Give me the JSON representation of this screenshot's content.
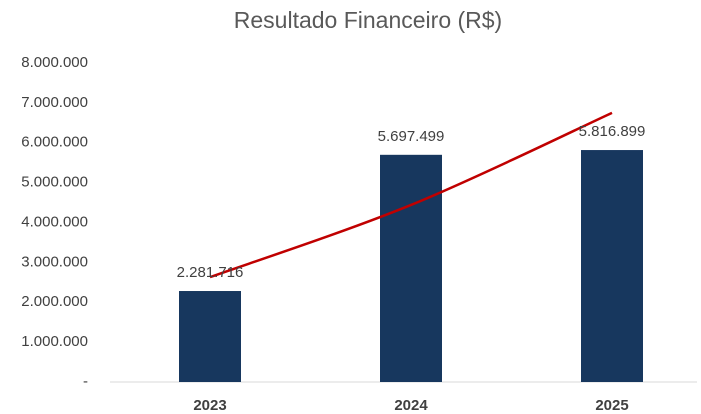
{
  "chart_data": {
    "type": "bar",
    "title": "Resultado Financeiro (R$)",
    "categories": [
      "2023",
      "2024",
      "2025"
    ],
    "values": [
      2281716,
      5697499,
      5816899
    ],
    "value_labels": [
      "2.281.716",
      "5.697.499",
      "5.816.899"
    ],
    "color": "#17375e",
    "trendline": {
      "color": "#c00000",
      "values": [
        2630000,
        4440000,
        6750000
      ]
    },
    "ylim": [
      0,
      8000000
    ],
    "yticks": [
      {
        "value": 0,
        "label": "-"
      },
      {
        "value": 1000000,
        "label": "1.000.000"
      },
      {
        "value": 2000000,
        "label": "2.000.000"
      },
      {
        "value": 3000000,
        "label": "3.000.000"
      },
      {
        "value": 4000000,
        "label": "4.000.000"
      },
      {
        "value": 5000000,
        "label": "5.000.000"
      },
      {
        "value": 6000000,
        "label": "6.000.000"
      },
      {
        "value": 7000000,
        "label": "7.000.000"
      },
      {
        "value": 8000000,
        "label": "8.000.000"
      }
    ],
    "grid": false
  }
}
